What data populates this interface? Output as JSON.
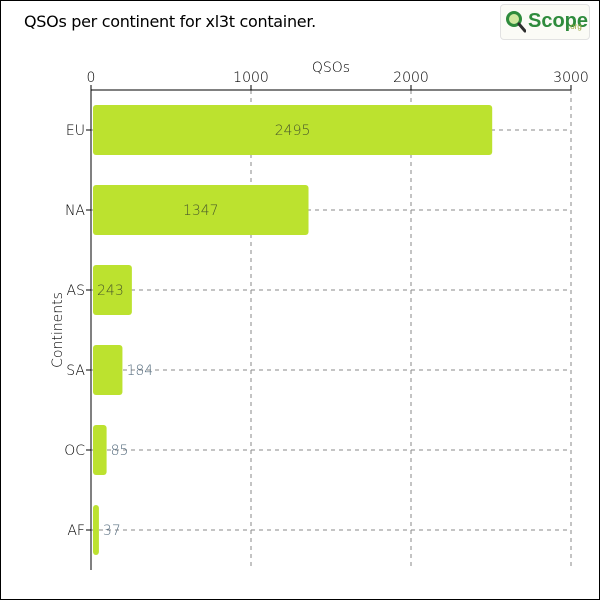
{
  "logo": {
    "main": "Scope",
    "sub": ".org",
    "icon": "magnifier-icon"
  },
  "colors": {
    "bar": "#bce22f",
    "grid": "#888888",
    "label_inside": "#4a5a2a",
    "label_outside": "#5a7082"
  },
  "chart_data": {
    "type": "bar",
    "orientation": "horizontal",
    "title": "QSOs per continent for xl3t container.",
    "xlabel": "QSOs",
    "ylabel": "Continents",
    "xaxis_position": "top",
    "xlim": [
      0,
      3000
    ],
    "xticks": [
      "0",
      "1000",
      "2000",
      "3000"
    ],
    "grid": true,
    "categories": [
      "EU",
      "NA",
      "AS",
      "SA",
      "OC",
      "AF"
    ],
    "values": [
      2495,
      1347,
      243,
      184,
      85,
      37
    ],
    "data_labels": [
      "2495",
      "1347",
      "243",
      "184",
      "85",
      "37"
    ]
  }
}
